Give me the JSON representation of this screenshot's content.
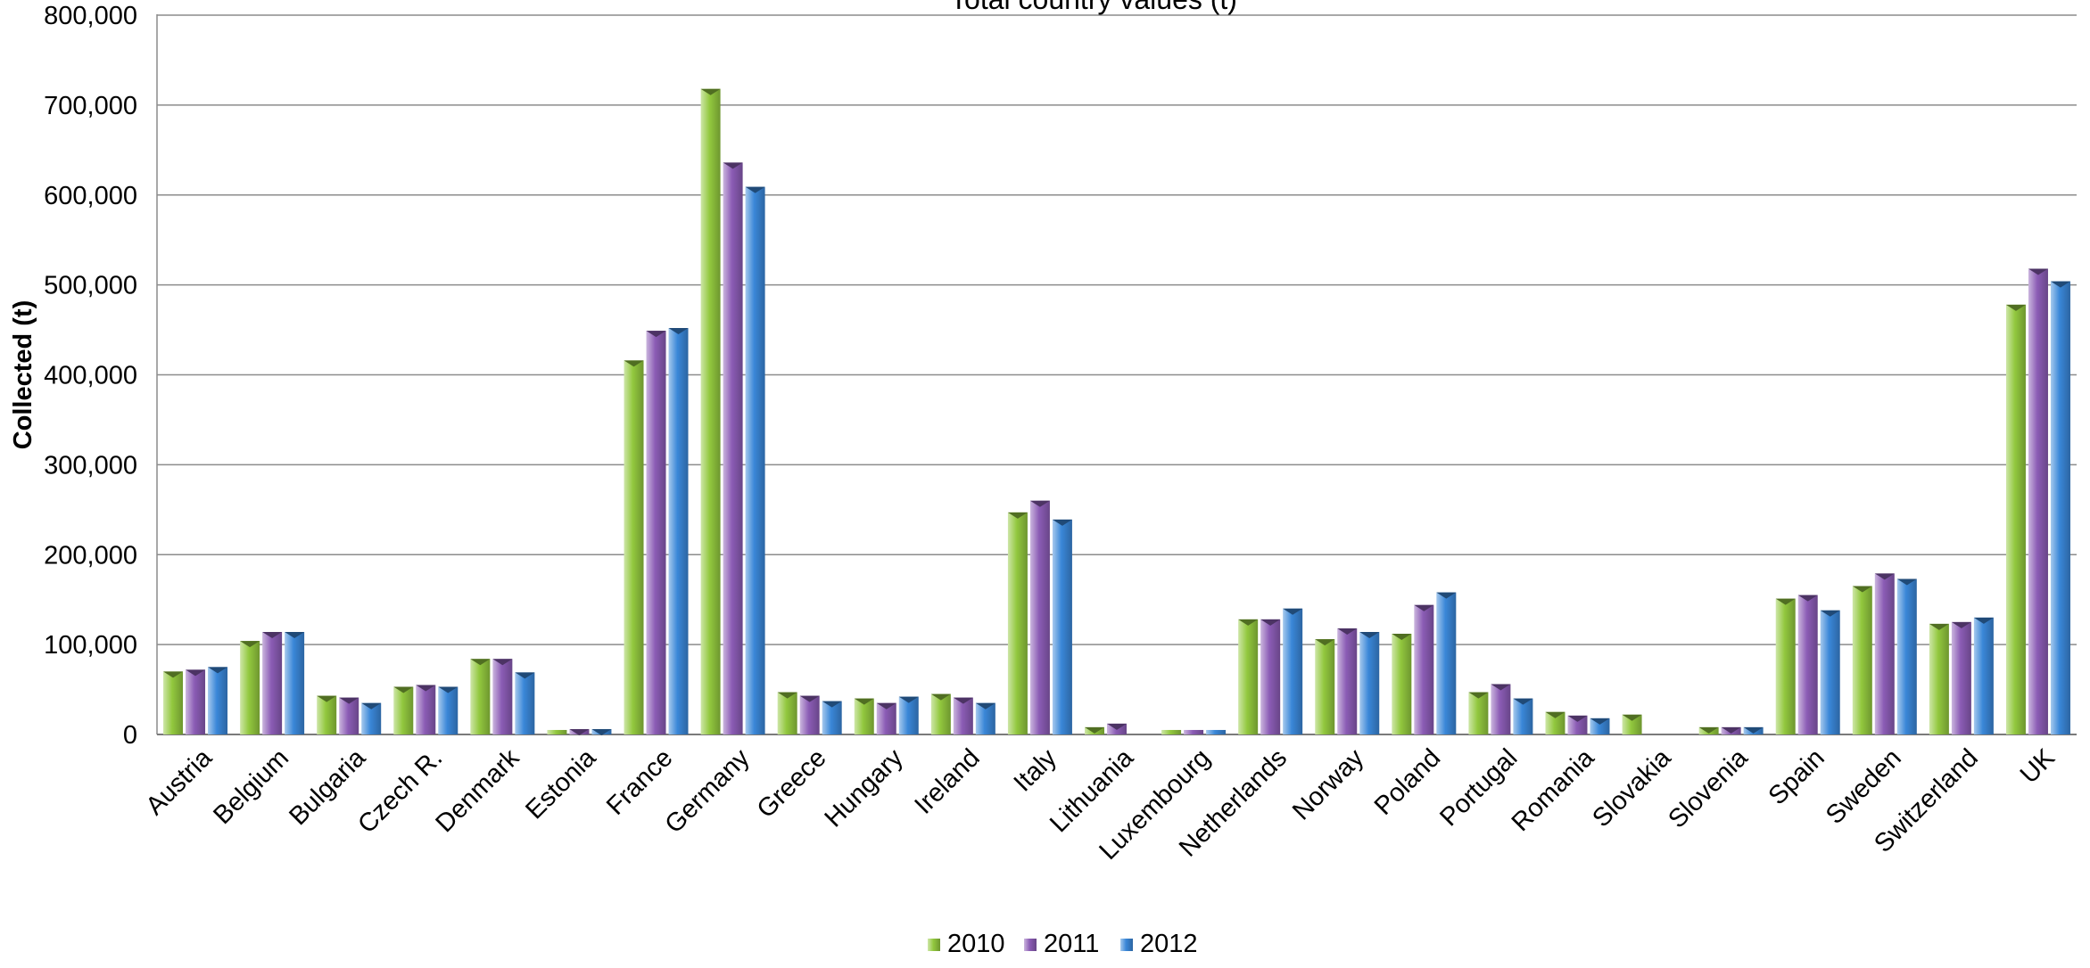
{
  "chart_data": {
    "type": "bar",
    "title": "Total country values (t)",
    "ylabel": "Collected (t)",
    "xlabel": "",
    "ylim": [
      0,
      800000
    ],
    "yticks": [
      "0",
      "100,000",
      "200,000",
      "300,000",
      "400,000",
      "500,000",
      "600,000",
      "700,000",
      "800,000"
    ],
    "ytick_values": [
      0,
      100000,
      200000,
      300000,
      400000,
      500000,
      600000,
      700000,
      800000
    ],
    "grid": true,
    "legend_position": "bottom",
    "categories": [
      "Austria",
      "Belgium",
      "Bulgaria",
      "Czech R.",
      "Denmark",
      "Estonia",
      "France",
      "Germany",
      "Greece",
      "Hungary",
      "Ireland",
      "Italy",
      "Lithuania",
      "Luxembourg",
      "Netherlands",
      "Norway",
      "Poland",
      "Portugal",
      "Romania",
      "Slovakia",
      "Slovenia",
      "Spain",
      "Sweden",
      "Switzerland",
      "UK"
    ],
    "series": [
      {
        "name": "2010",
        "color": "#92c83e",
        "values": [
          70000,
          104000,
          43000,
          53000,
          84000,
          5000,
          416000,
          718000,
          47000,
          40000,
          45000,
          247000,
          8000,
          5000,
          128000,
          106000,
          112000,
          47000,
          25000,
          22000,
          8000,
          151000,
          165000,
          123000,
          478000
        ]
      },
      {
        "name": "2011",
        "color": "#8b5cb5",
        "values": [
          72000,
          114000,
          41000,
          55000,
          84000,
          6000,
          449000,
          636000,
          43000,
          35000,
          41000,
          260000,
          12000,
          5000,
          128000,
          118000,
          144000,
          56000,
          21000,
          null,
          8000,
          155000,
          179000,
          125000,
          518000
        ]
      },
      {
        "name": "2012",
        "color": "#3a87d8",
        "values": [
          75000,
          114000,
          35000,
          53000,
          69000,
          6000,
          452000,
          609000,
          37000,
          42000,
          35000,
          239000,
          null,
          5000,
          140000,
          114000,
          158000,
          40000,
          18000,
          null,
          8000,
          138000,
          173000,
          130000,
          504000
        ]
      }
    ]
  }
}
